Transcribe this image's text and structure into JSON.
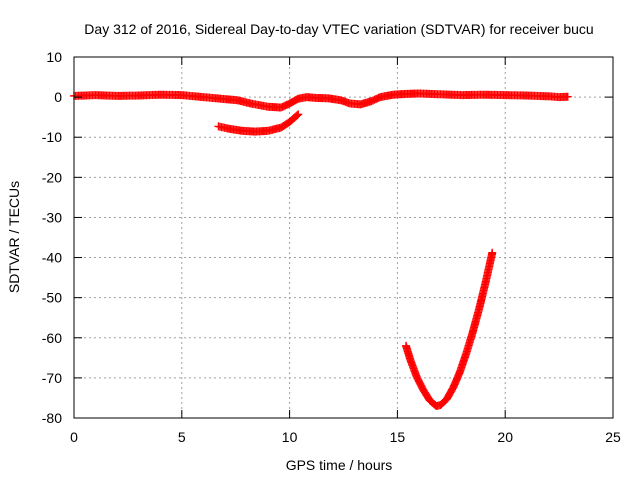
{
  "chart_data": {
    "type": "scatter",
    "title": "Day 312 of 2016, Sidereal Day-to-day VTEC variation (SDTVAR) for receiver bucu",
    "xlabel": "GPS time / hours",
    "ylabel": "SDTVAR / TECUs",
    "xlim": [
      0,
      25
    ],
    "ylim": [
      -80,
      10
    ],
    "xticks": [
      0,
      5,
      10,
      15,
      20,
      25
    ],
    "yticks": [
      10,
      0,
      -10,
      -20,
      -30,
      -40,
      -50,
      -60,
      -70,
      -80
    ],
    "grid": true,
    "marker": "plus",
    "color": "#ff0000",
    "series": [
      {
        "name": "track-main",
        "points": [
          [
            0.0,
            0.3
          ],
          [
            1.0,
            0.5
          ],
          [
            2.0,
            0.3
          ],
          [
            3.0,
            0.4
          ],
          [
            4.0,
            0.6
          ],
          [
            5.0,
            0.5
          ],
          [
            6.0,
            0.0
          ],
          [
            7.0,
            -0.5
          ],
          [
            7.6,
            -0.8
          ],
          [
            8.2,
            -1.6
          ],
          [
            9.0,
            -2.4
          ],
          [
            9.6,
            -2.6
          ],
          [
            10.0,
            -1.6
          ],
          [
            10.4,
            -0.4
          ],
          [
            10.8,
            0.0
          ],
          [
            11.2,
            -0.2
          ],
          [
            11.8,
            -0.3
          ],
          [
            12.4,
            -0.8
          ],
          [
            12.8,
            -1.6
          ],
          [
            13.3,
            -1.8
          ],
          [
            13.8,
            -1.0
          ],
          [
            14.2,
            0.0
          ],
          [
            14.8,
            0.6
          ],
          [
            15.4,
            0.8
          ],
          [
            16.0,
            0.9
          ],
          [
            17.0,
            0.7
          ],
          [
            18.0,
            0.5
          ],
          [
            19.0,
            0.6
          ],
          [
            20.0,
            0.5
          ],
          [
            21.0,
            0.4
          ],
          [
            22.0,
            0.2
          ],
          [
            22.5,
            0.0
          ],
          [
            22.9,
            0.1
          ]
        ]
      },
      {
        "name": "track-dip-morning",
        "points": [
          [
            6.7,
            -7.3
          ],
          [
            7.2,
            -7.9
          ],
          [
            7.8,
            -8.4
          ],
          [
            8.4,
            -8.6
          ],
          [
            9.0,
            -8.4
          ],
          [
            9.6,
            -7.6
          ],
          [
            10.0,
            -6.2
          ],
          [
            10.4,
            -4.3
          ]
        ]
      },
      {
        "name": "track-deep-dip",
        "points": [
          [
            15.4,
            -62.0
          ],
          [
            15.6,
            -65.5
          ],
          [
            15.9,
            -69.8
          ],
          [
            16.2,
            -73.0
          ],
          [
            16.5,
            -75.6
          ],
          [
            16.8,
            -77.0
          ],
          [
            17.0,
            -76.8
          ],
          [
            17.3,
            -75.2
          ],
          [
            17.6,
            -72.3
          ],
          [
            17.9,
            -68.5
          ],
          [
            18.2,
            -63.8
          ],
          [
            18.5,
            -58.5
          ],
          [
            18.8,
            -52.6
          ],
          [
            19.1,
            -46.0
          ],
          [
            19.4,
            -38.8
          ]
        ]
      }
    ]
  }
}
